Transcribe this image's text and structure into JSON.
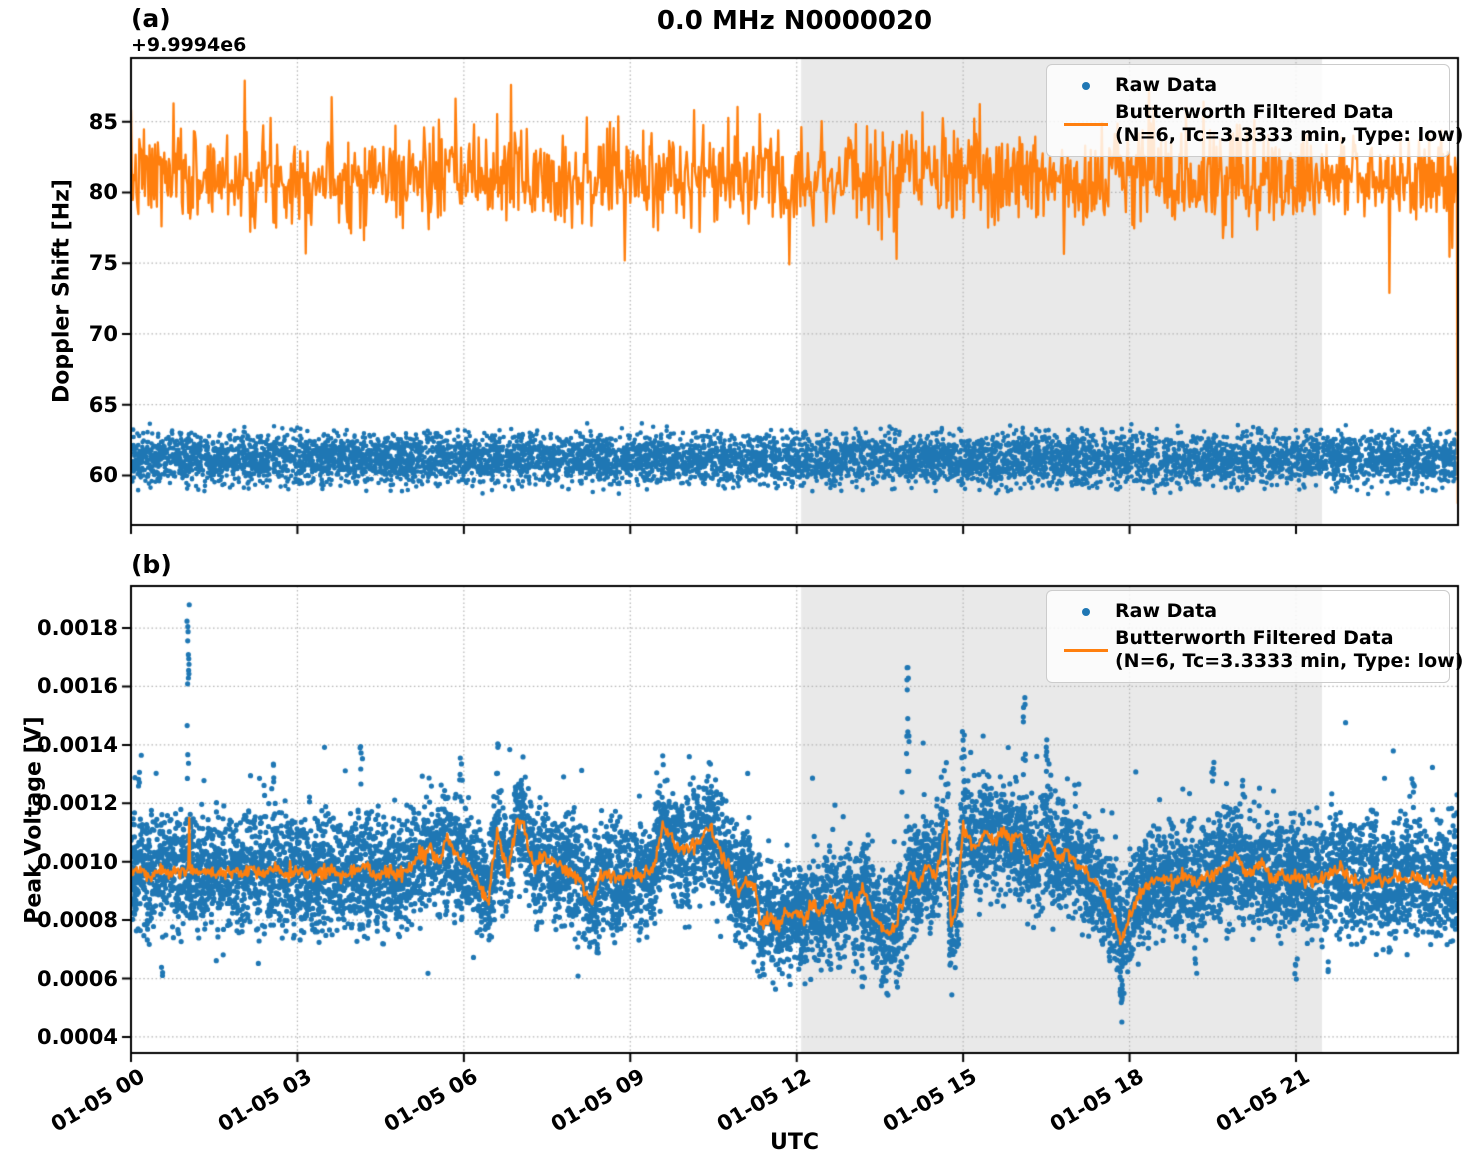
{
  "figure": {
    "title": "0.0 MHz N0000020",
    "xlabel": "UTC",
    "colors": {
      "raw": "#1f77b4",
      "filtered": "#ff7f0e",
      "shade": "#e9e9e9",
      "grid": "#b3b3b3",
      "spine": "#000000",
      "background": "#ffffff"
    },
    "shade_region_hours": [
      12.08,
      21.47
    ],
    "x_ticks": [
      {
        "hour": 0,
        "label": "01-05 00"
      },
      {
        "hour": 3,
        "label": "01-05 03"
      },
      {
        "hour": 6,
        "label": "01-05 06"
      },
      {
        "hour": 9,
        "label": "01-05 09"
      },
      {
        "hour": 12,
        "label": "01-05 12"
      },
      {
        "hour": 15,
        "label": "01-05 15"
      },
      {
        "hour": 18,
        "label": "01-05 18"
      },
      {
        "hour": 21,
        "label": "01-05 21"
      }
    ],
    "legend": {
      "raw_label": "Raw Data",
      "filtered_label": "Butterworth Filtered Data",
      "filtered_sublabel": "(N=6, Tc=3.3333 min, Type: low)",
      "position": "upper right"
    }
  },
  "chart_data": [
    {
      "type": "scatter",
      "panel_label": "(a)",
      "ylabel": "Doppler Shift [Hz]",
      "offset_text": "+9.9994e6",
      "grid": true,
      "ylim": [
        56.5,
        89.5
      ],
      "yticks": [
        {
          "v": 60,
          "label": "60"
        },
        {
          "v": 65,
          "label": "65"
        },
        {
          "v": 70,
          "label": "70"
        },
        {
          "v": 75,
          "label": "75"
        },
        {
          "v": 80,
          "label": "80"
        },
        {
          "v": 85,
          "label": "85"
        }
      ],
      "xlim_hours": [
        0,
        23.92
      ],
      "series": [
        {
          "name": "Raw Data",
          "kind": "scatter-band",
          "seed": 42,
          "n": 7200,
          "center": 61.15,
          "spread": 2.65,
          "dot_radius": 2.3
        },
        {
          "name": "Butterworth Filtered Data",
          "kind": "noisy-line",
          "seed": 7,
          "points_per_hour": 60,
          "mean": 81.1,
          "sigma": 1.72,
          "clip": [
            74.9,
            87.95
          ],
          "line_width": 2.3,
          "spikes": [
            {
              "hour": 2.05,
              "value": 87.9
            },
            {
              "hour": 6.85,
              "value": 87.6
            },
            {
              "hour": 8.9,
              "value": 75.2
            },
            {
              "hour": 13.8,
              "value": 75.3
            },
            {
              "hour": 18.35,
              "value": 87.3
            },
            {
              "hour": 22.68,
              "value": 72.9
            }
          ],
          "end_drop_value": 58.0
        }
      ]
    },
    {
      "type": "scatter+line",
      "panel_label": "(b)",
      "ylabel": "Peak Voltage [V]",
      "offset_text": "",
      "grid": true,
      "ylim": [
        0.000345,
        0.001944
      ],
      "yticks": [
        {
          "v": 0.0004,
          "label": "0.0004"
        },
        {
          "v": 0.0006,
          "label": "0.0006"
        },
        {
          "v": 0.0008,
          "label": "0.0008"
        },
        {
          "v": 0.001,
          "label": "0.0010"
        },
        {
          "v": 0.0012,
          "label": "0.0012"
        },
        {
          "v": 0.0014,
          "label": "0.0014"
        },
        {
          "v": 0.0016,
          "label": "0.0016"
        },
        {
          "v": 0.0018,
          "label": "0.0018"
        }
      ],
      "xlim_hours": [
        0,
        23.92
      ],
      "series": [
        {
          "name": "Raw Data",
          "kind": "scatter-around-line",
          "seed": 11,
          "n": 10500,
          "spread": 0.00028,
          "dot_radius": 2.6,
          "speckle_high_frac": 0.015,
          "speckle_high_min": 8e-05,
          "speckle_high_max": 0.0003,
          "speckle_low_frac": 0.007,
          "speckle_low_min": 6e-05,
          "speckle_low_max": 0.00022,
          "outlier_columns": [
            {
              "hour": 1.03,
              "ymin": 0.00125,
              "ymax": 0.00188,
              "n": 16
            },
            {
              "hour": 14.0,
              "ymin": 0.00126,
              "ymax": 0.00171,
              "n": 12
            },
            {
              "hour": 16.1,
              "ymin": 0.00126,
              "ymax": 0.00163,
              "n": 9
            },
            {
              "hour": 17.85,
              "ymin": 0.00044,
              "ymax": 0.00067,
              "n": 12
            },
            {
              "hour": 14.78,
              "ymin": 0.00062,
              "ymax": 0.00072,
              "n": 6
            },
            {
              "hour": 8.4,
              "ymin": 0.00063,
              "ymax": 0.00072,
              "n": 5
            },
            {
              "hour": 11.4,
              "ymin": 0.00061,
              "ymax": 0.0007,
              "n": 6
            },
            {
              "hour": 13.2,
              "ymin": 0.00057,
              "ymax": 0.00068,
              "n": 6
            },
            {
              "hour": 12.6,
              "ymin": 0.0006,
              "ymax": 0.00068,
              "n": 4
            },
            {
              "hour": 0.55,
              "ymin": 0.0006,
              "ymax": 0.0007,
              "n": 3
            },
            {
              "hour": 19.2,
              "ymin": 0.00061,
              "ymax": 0.00069,
              "n": 3
            },
            {
              "hour": 21.0,
              "ymin": 0.00059,
              "ymax": 0.00068,
              "n": 5
            },
            {
              "hour": 21.6,
              "ymin": 0.00062,
              "ymax": 0.00071,
              "n": 4
            },
            {
              "hour": 22.7,
              "ymin": 0.00065,
              "ymax": 0.00072,
              "n": 3
            },
            {
              "hour": 4.15,
              "ymin": 0.00126,
              "ymax": 0.0014,
              "n": 6
            },
            {
              "hour": 2.55,
              "ymin": 0.00124,
              "ymax": 0.00134,
              "n": 5
            },
            {
              "hour": 5.95,
              "ymin": 0.00125,
              "ymax": 0.00136,
              "n": 5
            },
            {
              "hour": 6.6,
              "ymin": 0.00126,
              "ymax": 0.00141,
              "n": 6
            },
            {
              "hour": 0.15,
              "ymin": 0.00122,
              "ymax": 0.00134,
              "n": 4
            },
            {
              "hour": 19.5,
              "ymin": 0.00124,
              "ymax": 0.00136,
              "n": 5
            },
            {
              "hour": 20.05,
              "ymin": 0.00122,
              "ymax": 0.00132,
              "n": 4
            },
            {
              "hour": 23.1,
              "ymin": 0.0012,
              "ymax": 0.0013,
              "n": 4
            },
            {
              "hour": 15.0,
              "ymin": 0.0013,
              "ymax": 0.00145,
              "n": 6
            },
            {
              "hour": 16.5,
              "ymin": 0.00128,
              "ymax": 0.0015,
              "n": 6
            }
          ]
        },
        {
          "name": "Butterworth Filtered Data",
          "kind": "anchored-line",
          "seed": 5,
          "points_per_hour": 60,
          "noise": 1.2e-05,
          "line_width": 2.4,
          "spikes": [
            {
              "hour": 1.05,
              "value": 0.00115
            }
          ],
          "anchors": [
            [
              0.0,
              0.00098
            ],
            [
              0.2,
              0.00096
            ],
            [
              0.35,
              0.00094
            ],
            [
              0.5,
              0.00097
            ],
            [
              0.7,
              0.00096
            ],
            [
              0.9,
              0.00097
            ],
            [
              1.05,
              0.00097
            ],
            [
              1.2,
              0.00096
            ],
            [
              1.4,
              0.00097
            ],
            [
              1.6,
              0.00096
            ],
            [
              1.8,
              0.00097
            ],
            [
              2.0,
              0.00096
            ],
            [
              2.2,
              0.00097
            ],
            [
              2.4,
              0.00096
            ],
            [
              2.6,
              0.00098
            ],
            [
              2.8,
              0.00096
            ],
            [
              3.0,
              0.00097
            ],
            [
              3.2,
              0.00096
            ],
            [
              3.4,
              0.00095
            ],
            [
              3.6,
              0.00097
            ],
            [
              3.8,
              0.00096
            ],
            [
              4.0,
              0.00097
            ],
            [
              4.2,
              0.00098
            ],
            [
              4.4,
              0.00096
            ],
            [
              4.6,
              0.00097
            ],
            [
              4.8,
              0.00095
            ],
            [
              5.0,
              0.00098
            ],
            [
              5.2,
              0.00102
            ],
            [
              5.4,
              0.00104
            ],
            [
              5.55,
              0.001
            ],
            [
              5.7,
              0.00108
            ],
            [
              5.85,
              0.00103
            ],
            [
              6.0,
              0.001
            ],
            [
              6.15,
              0.00097
            ],
            [
              6.3,
              0.00091
            ],
            [
              6.45,
              0.00088
            ],
            [
              6.6,
              0.0011
            ],
            [
              6.7,
              0.00103
            ],
            [
              6.8,
              0.00096
            ],
            [
              6.95,
              0.00113
            ],
            [
              7.05,
              0.00114
            ],
            [
              7.15,
              0.00105
            ],
            [
              7.3,
              0.00098
            ],
            [
              7.45,
              0.00102
            ],
            [
              7.6,
              0.001
            ],
            [
              7.75,
              0.00098
            ],
            [
              7.9,
              0.00097
            ],
            [
              8.1,
              0.00093
            ],
            [
              8.3,
              0.00086
            ],
            [
              8.45,
              0.00094
            ],
            [
              8.6,
              0.00096
            ],
            [
              8.8,
              0.00094
            ],
            [
              9.0,
              0.00096
            ],
            [
              9.2,
              0.00095
            ],
            [
              9.4,
              0.00097
            ],
            [
              9.6,
              0.00113
            ],
            [
              9.75,
              0.00107
            ],
            [
              9.9,
              0.00104
            ],
            [
              10.1,
              0.00105
            ],
            [
              10.3,
              0.00108
            ],
            [
              10.45,
              0.00112
            ],
            [
              10.6,
              0.00104
            ],
            [
              10.8,
              0.00097
            ],
            [
              10.95,
              0.0009
            ],
            [
              11.1,
              0.00094
            ],
            [
              11.25,
              0.00092
            ],
            [
              11.35,
              0.00079
            ],
            [
              11.5,
              0.00081
            ],
            [
              11.65,
              0.00078
            ],
            [
              11.8,
              0.00082
            ],
            [
              12.0,
              0.00083
            ],
            [
              12.15,
              0.0008
            ],
            [
              12.3,
              0.00086
            ],
            [
              12.45,
              0.00082
            ],
            [
              12.6,
              0.00088
            ],
            [
              12.75,
              0.00083
            ],
            [
              12.9,
              0.00089
            ],
            [
              13.05,
              0.00085
            ],
            [
              13.2,
              0.00091
            ],
            [
              13.35,
              0.00083
            ],
            [
              13.5,
              0.00078
            ],
            [
              13.65,
              0.00075
            ],
            [
              13.8,
              0.00079
            ],
            [
              13.95,
              0.00088
            ],
            [
              14.05,
              0.00097
            ],
            [
              14.2,
              0.00091
            ],
            [
              14.35,
              0.00099
            ],
            [
              14.5,
              0.00094
            ],
            [
              14.6,
              0.00104
            ],
            [
              14.7,
              0.00115
            ],
            [
              14.78,
              0.00077
            ],
            [
              14.88,
              0.00083
            ],
            [
              15.0,
              0.00112
            ],
            [
              15.1,
              0.00108
            ],
            [
              15.25,
              0.00104
            ],
            [
              15.4,
              0.00111
            ],
            [
              15.55,
              0.00106
            ],
            [
              15.7,
              0.00111
            ],
            [
              15.85,
              0.00108
            ],
            [
              16.0,
              0.00109
            ],
            [
              16.15,
              0.00103
            ],
            [
              16.3,
              0.001
            ],
            [
              16.45,
              0.00104
            ],
            [
              16.55,
              0.00108
            ],
            [
              16.7,
              0.00101
            ],
            [
              16.85,
              0.00104
            ],
            [
              17.0,
              0.001
            ],
            [
              17.15,
              0.00098
            ],
            [
              17.3,
              0.00094
            ],
            [
              17.45,
              0.00091
            ],
            [
              17.6,
              0.00086
            ],
            [
              17.75,
              0.00079
            ],
            [
              17.85,
              0.00073
            ],
            [
              17.95,
              0.00079
            ],
            [
              18.1,
              0.00086
            ],
            [
              18.25,
              0.00091
            ],
            [
              18.4,
              0.00093
            ],
            [
              18.6,
              0.00094
            ],
            [
              18.8,
              0.00093
            ],
            [
              19.0,
              0.00095
            ],
            [
              19.2,
              0.00093
            ],
            [
              19.4,
              0.00095
            ],
            [
              19.6,
              0.00097
            ],
            [
              19.8,
              0.001
            ],
            [
              19.95,
              0.00102
            ],
            [
              20.1,
              0.00095
            ],
            [
              20.25,
              0.00097
            ],
            [
              20.4,
              0.001
            ],
            [
              20.55,
              0.00094
            ],
            [
              20.7,
              0.00096
            ],
            [
              20.9,
              0.00094
            ],
            [
              21.1,
              0.00095
            ],
            [
              21.3,
              0.00093
            ],
            [
              21.5,
              0.00095
            ],
            [
              21.7,
              0.00097
            ],
            [
              21.85,
              0.00098
            ],
            [
              22.0,
              0.00094
            ],
            [
              22.2,
              0.00093
            ],
            [
              22.4,
              0.00095
            ],
            [
              22.6,
              0.00092
            ],
            [
              22.8,
              0.00095
            ],
            [
              23.0,
              0.00094
            ],
            [
              23.2,
              0.00095
            ],
            [
              23.4,
              0.00092
            ],
            [
              23.6,
              0.00094
            ],
            [
              23.75,
              0.00093
            ],
            [
              23.92,
              0.00093
            ]
          ]
        }
      ]
    }
  ]
}
